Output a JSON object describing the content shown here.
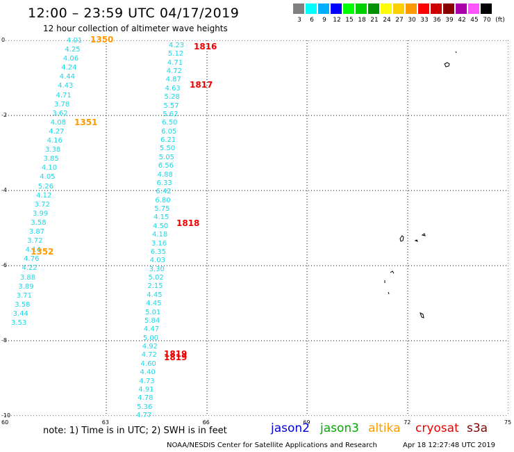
{
  "header": {
    "title": "12:00 – 23:59 UTC 04/17/2019",
    "subtitle": "12 hour collection of altimeter wave heights"
  },
  "color_scale": {
    "unit": "(ft)",
    "swatches": [
      {
        "label": "3",
        "color": "#808080"
      },
      {
        "label": "6",
        "color": "#00ffff"
      },
      {
        "label": "9",
        "color": "#00b0ff"
      },
      {
        "label": "12",
        "color": "#0000ff"
      },
      {
        "label": "15",
        "color": "#00ff00"
      },
      {
        "label": "18",
        "color": "#00d000"
      },
      {
        "label": "21",
        "color": "#009000"
      },
      {
        "label": "24",
        "color": "#ffff00"
      },
      {
        "label": "27",
        "color": "#ffd000"
      },
      {
        "label": "30",
        "color": "#ff9900"
      },
      {
        "label": "33",
        "color": "#ff0000"
      },
      {
        "label": "36",
        "color": "#cc0000"
      },
      {
        "label": "39",
        "color": "#880000"
      },
      {
        "label": "42",
        "color": "#aa00aa"
      },
      {
        "label": "45",
        "color": "#ff55ff"
      },
      {
        "label": "70",
        "color": "#000000"
      }
    ]
  },
  "axes": {
    "y_labels": [
      "0",
      "-2",
      "-4",
      "-6",
      "-8",
      "-10"
    ],
    "x_labels": [
      "60",
      "63",
      "66",
      "69",
      "72",
      "75"
    ]
  },
  "tracks": {
    "track_a": {
      "color": "#19d7e8",
      "values": [
        "4.01",
        "4.25",
        "4.06",
        "4.24",
        "4.44",
        "4.43",
        "4.71",
        "3.78",
        "3.62",
        "4.08",
        "4.27",
        "4.16",
        "3.38",
        "3.85",
        "4.10",
        "4.05",
        "5.26",
        "4.12",
        "3.72",
        "3.99",
        "3.58",
        "3.87",
        "3.72",
        "4.14",
        "4.76",
        "4.22",
        "3.88",
        "3.89",
        "3.71",
        "3.58",
        "3.44",
        "3.53"
      ]
    },
    "track_b": {
      "color": "#19d7e8",
      "values": [
        "4.23",
        "5.12",
        "4.71",
        "4.72",
        "4.87",
        "4.63",
        "5.28",
        "5.57",
        "5.62",
        "6.50",
        "6.05",
        "6.21",
        "5.50",
        "5.05",
        "6.56",
        "4.88",
        "6.33",
        "6.42",
        "6.80",
        "5.75",
        "4.15",
        "4.50",
        "4.18",
        "3.16",
        "6.35",
        "4.03",
        "3.30",
        "5.02",
        "2.15",
        "4.45",
        "4.45",
        "5.01",
        "5.84",
        "4.47",
        "5.00",
        "4.92",
        "4.72",
        "4.60",
        "4.40",
        "4.73",
        "4.91",
        "4.78",
        "5.36",
        "4.77"
      ]
    }
  },
  "time_marks": [
    {
      "text": "1350",
      "color": "#ff9900"
    },
    {
      "text": "1351",
      "color": "#ff9900"
    },
    {
      "text": "1352",
      "color": "#ff9900"
    },
    {
      "text": "1816",
      "color": "#ee0000"
    },
    {
      "text": "1817",
      "color": "#ee0000"
    },
    {
      "text": "1818",
      "color": "#ee0000"
    },
    {
      "text": "1819",
      "color": "#ee0000"
    },
    {
      "text": "1819",
      "color": "#ee0000"
    }
  ],
  "footer": {
    "note": "note:  1) Time is in UTC;  2) SWH is in feet",
    "satellites": [
      {
        "name": "jason2",
        "color": "#0000dd"
      },
      {
        "name": "jason3",
        "color": "#00aa00"
      },
      {
        "name": "altika",
        "color": "#ff9900"
      },
      {
        "name": "cryosat",
        "color": "#ee0000"
      },
      {
        "name": "s3a",
        "color": "#880000"
      }
    ],
    "credit": "NOAA/NESDIS Center for Satellite Applications and Research",
    "timestamp": "Apr 18 12:27:48 UTC 2019"
  }
}
